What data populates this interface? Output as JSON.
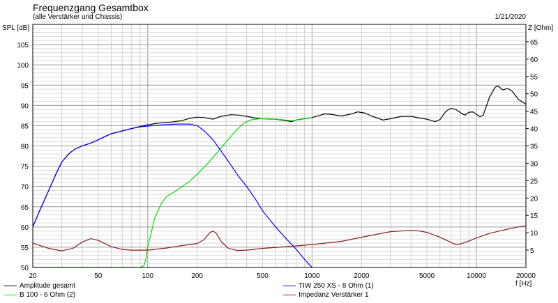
{
  "header": {
    "title": "Frequenzgang Gesamtbox",
    "subtitle": "(alle Verstärker und Chassis)",
    "date": "1/21/2020",
    "y_left_label": "SPL [dB]",
    "y_right_label": "Z [Ohm]",
    "x_label": "f [Hz]"
  },
  "chart_data": {
    "type": "line",
    "x_scale": "log",
    "xlim": [
      20,
      20000
    ],
    "ylim_left": [
      50,
      110
    ],
    "ylim_right": [
      0,
      70
    ],
    "grid": true,
    "x_ticks": [
      {
        "v": 20,
        "label": "20"
      },
      {
        "v": 50,
        "label": "50"
      },
      {
        "v": 100,
        "label": "100"
      },
      {
        "v": 200,
        "label": "200"
      },
      {
        "v": 500,
        "label": "500"
      },
      {
        "v": 1000,
        "label": "1000"
      },
      {
        "v": 2000,
        "label": "2000"
      },
      {
        "v": 5000,
        "label": "5000"
      },
      {
        "v": 10000,
        "label": "10000"
      },
      {
        "v": 20000,
        "label": "20000"
      }
    ],
    "y_left_ticks": [
      {
        "v": 50,
        "label": "50"
      },
      {
        "v": 55,
        "label": "55"
      },
      {
        "v": 60,
        "label": "60"
      },
      {
        "v": 65,
        "label": "65"
      },
      {
        "v": 70,
        "label": "70"
      },
      {
        "v": 75,
        "label": "75"
      },
      {
        "v": 80,
        "label": "80"
      },
      {
        "v": 85,
        "label": "85"
      },
      {
        "v": 90,
        "label": "90"
      },
      {
        "v": 95,
        "label": "95"
      },
      {
        "v": 100,
        "label": "100"
      },
      {
        "v": 105,
        "label": "105"
      }
    ],
    "y_right_ticks": [
      {
        "v": 5,
        "label": "5"
      },
      {
        "v": 10,
        "label": "10"
      },
      {
        "v": 15,
        "label": "15"
      },
      {
        "v": 20,
        "label": "20"
      },
      {
        "v": 25,
        "label": "25"
      },
      {
        "v": 30,
        "label": "30"
      },
      {
        "v": 35,
        "label": "35"
      },
      {
        "v": 40,
        "label": "40"
      },
      {
        "v": 45,
        "label": "45"
      },
      {
        "v": 50,
        "label": "50"
      },
      {
        "v": 55,
        "label": "55"
      },
      {
        "v": 60,
        "label": "60"
      },
      {
        "v": 65,
        "label": "65"
      }
    ],
    "series": [
      {
        "name": "Amplitude gesamt",
        "color": "#000000",
        "axis": "left",
        "points": [
          [
            20,
            60.0
          ],
          [
            22,
            64.0
          ],
          [
            25,
            69.0
          ],
          [
            28,
            73.5
          ],
          [
            30,
            76.0
          ],
          [
            33,
            78.0
          ],
          [
            36,
            79.2
          ],
          [
            40,
            80.0
          ],
          [
            45,
            80.7
          ],
          [
            50,
            81.5
          ],
          [
            55,
            82.3
          ],
          [
            60,
            83.0
          ],
          [
            70,
            83.7
          ],
          [
            80,
            84.3
          ],
          [
            90,
            84.8
          ],
          [
            100,
            85.2
          ],
          [
            110,
            85.5
          ],
          [
            120,
            85.7
          ],
          [
            140,
            85.9
          ],
          [
            160,
            86.2
          ],
          [
            180,
            86.8
          ],
          [
            200,
            87.1
          ],
          [
            220,
            87.0
          ],
          [
            250,
            86.6
          ],
          [
            280,
            87.3
          ],
          [
            320,
            87.7
          ],
          [
            360,
            87.6
          ],
          [
            400,
            87.3
          ],
          [
            450,
            86.9
          ],
          [
            500,
            86.7
          ],
          [
            600,
            86.6
          ],
          [
            700,
            86.2
          ],
          [
            750,
            86.0
          ],
          [
            800,
            86.4
          ],
          [
            900,
            86.7
          ],
          [
            1000,
            87.0
          ],
          [
            1100,
            87.5
          ],
          [
            1200,
            87.9
          ],
          [
            1300,
            87.8
          ],
          [
            1500,
            87.4
          ],
          [
            1700,
            87.8
          ],
          [
            1900,
            88.4
          ],
          [
            2100,
            88.1
          ],
          [
            2300,
            87.4
          ],
          [
            2700,
            86.4
          ],
          [
            3000,
            86.7
          ],
          [
            3500,
            87.3
          ],
          [
            4000,
            87.3
          ],
          [
            4500,
            86.9
          ],
          [
            5000,
            86.6
          ],
          [
            5300,
            86.3
          ],
          [
            5600,
            86.0
          ],
          [
            6000,
            86.5
          ],
          [
            6500,
            88.5
          ],
          [
            7000,
            89.3
          ],
          [
            7500,
            89.0
          ],
          [
            8000,
            88.2
          ],
          [
            8500,
            87.6
          ],
          [
            9000,
            88.3
          ],
          [
            9500,
            88.4
          ],
          [
            10000,
            87.8
          ],
          [
            10500,
            87.2
          ],
          [
            11000,
            87.6
          ],
          [
            12000,
            92.0
          ],
          [
            13000,
            94.5
          ],
          [
            13500,
            94.8
          ],
          [
            14500,
            93.8
          ],
          [
            15500,
            94.2
          ],
          [
            16500,
            93.5
          ],
          [
            18000,
            91.5
          ],
          [
            20000,
            90.3
          ]
        ]
      },
      {
        "name": "B 100 - 6 Ohm (2)",
        "color": "#00dd00",
        "axis": "left",
        "points": [
          [
            20,
            50.0
          ],
          [
            90,
            50.0
          ],
          [
            95,
            50.5
          ],
          [
            98,
            52.5
          ],
          [
            100,
            55.0
          ],
          [
            105,
            58.5
          ],
          [
            110,
            62.0
          ],
          [
            120,
            65.5
          ],
          [
            130,
            67.5
          ],
          [
            150,
            69.0
          ],
          [
            180,
            71.3
          ],
          [
            200,
            73.0
          ],
          [
            230,
            75.5
          ],
          [
            260,
            78.0
          ],
          [
            300,
            81.0
          ],
          [
            340,
            83.5
          ],
          [
            380,
            85.5
          ],
          [
            420,
            86.4
          ],
          [
            480,
            86.7
          ],
          [
            550,
            86.7
          ],
          [
            650,
            86.5
          ],
          [
            750,
            86.2
          ],
          [
            850,
            86.5
          ],
          [
            1000,
            87.0
          ]
        ]
      },
      {
        "name": "TIW 250 XS - 8 Ohm (1)",
        "color": "#0000ff",
        "axis": "left",
        "points": [
          [
            20,
            60.0
          ],
          [
            22,
            64.0
          ],
          [
            25,
            69.0
          ],
          [
            28,
            73.5
          ],
          [
            30,
            76.0
          ],
          [
            33,
            78.0
          ],
          [
            36,
            79.2
          ],
          [
            40,
            80.0
          ],
          [
            45,
            80.7
          ],
          [
            50,
            81.5
          ],
          [
            55,
            82.3
          ],
          [
            60,
            83.0
          ],
          [
            70,
            83.7
          ],
          [
            80,
            84.3
          ],
          [
            90,
            84.7
          ],
          [
            100,
            84.9
          ],
          [
            120,
            85.2
          ],
          [
            150,
            85.4
          ],
          [
            180,
            85.4
          ],
          [
            200,
            85.0
          ],
          [
            220,
            83.8
          ],
          [
            250,
            81.5
          ],
          [
            300,
            77.0
          ],
          [
            350,
            73.0
          ],
          [
            400,
            70.0
          ],
          [
            450,
            67.0
          ],
          [
            500,
            64.0
          ],
          [
            600,
            60.0
          ],
          [
            700,
            57.0
          ],
          [
            800,
            54.5
          ],
          [
            900,
            52.0
          ],
          [
            1000,
            50.0
          ]
        ]
      },
      {
        "name": "Impedanz Verstärker 1",
        "color": "#8b1a1a",
        "axis": "right",
        "points": [
          [
            20,
            7.0
          ],
          [
            25,
            5.5
          ],
          [
            30,
            4.8
          ],
          [
            35,
            5.5
          ],
          [
            40,
            7.3
          ],
          [
            45,
            8.3
          ],
          [
            50,
            7.8
          ],
          [
            60,
            6.0
          ],
          [
            70,
            5.2
          ],
          [
            80,
            5.0
          ],
          [
            100,
            5.0
          ],
          [
            130,
            5.6
          ],
          [
            160,
            6.3
          ],
          [
            200,
            6.9
          ],
          [
            220,
            8.0
          ],
          [
            240,
            10.1
          ],
          [
            250,
            10.4
          ],
          [
            260,
            10.0
          ],
          [
            280,
            7.5
          ],
          [
            310,
            5.5
          ],
          [
            350,
            4.9
          ],
          [
            400,
            5.0
          ],
          [
            500,
            5.5
          ],
          [
            700,
            6.0
          ],
          [
            1000,
            6.6
          ],
          [
            1500,
            7.5
          ],
          [
            2000,
            8.7
          ],
          [
            2500,
            9.6
          ],
          [
            3000,
            10.3
          ],
          [
            4000,
            10.7
          ],
          [
            4500,
            10.5
          ],
          [
            5000,
            10.1
          ],
          [
            6000,
            8.7
          ],
          [
            7000,
            7.2
          ],
          [
            7500,
            6.6
          ],
          [
            8000,
            6.8
          ],
          [
            9000,
            7.6
          ],
          [
            10000,
            8.5
          ],
          [
            12000,
            9.8
          ],
          [
            15000,
            10.9
          ],
          [
            18000,
            11.7
          ],
          [
            20000,
            12.0
          ]
        ]
      }
    ]
  }
}
